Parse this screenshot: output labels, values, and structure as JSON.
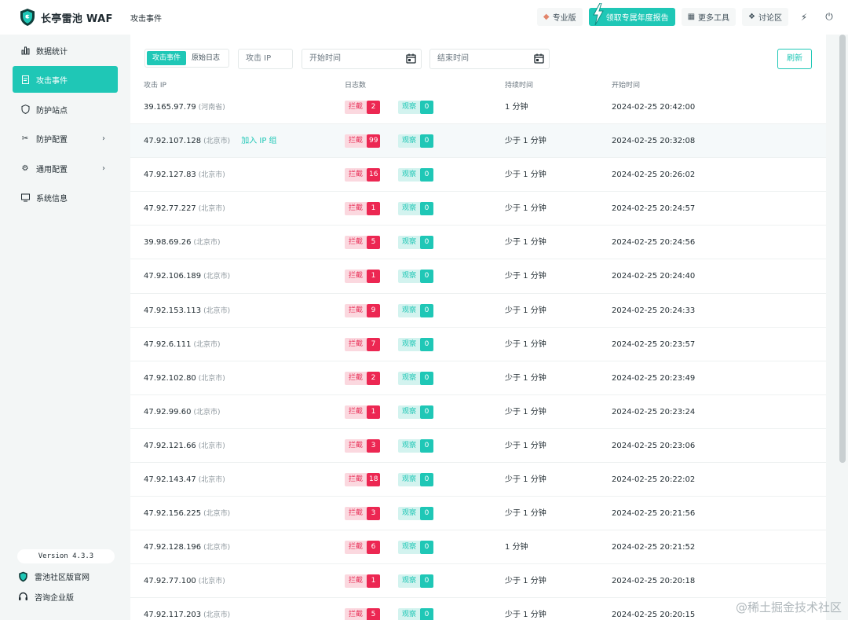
{
  "app": {
    "name": "长亭雷池 WAF",
    "page_title": "攻击事件"
  },
  "topbar": {
    "pro_label": "专业版",
    "report_label": "领取专属年度报告",
    "tools_label": "更多工具",
    "forum_label": "讨论区"
  },
  "sidebar": {
    "items": [
      {
        "label": "数据统计",
        "icon": "bar-chart-icon",
        "active": false,
        "has_children": false
      },
      {
        "label": "攻击事件",
        "icon": "document-icon",
        "active": true,
        "has_children": false
      },
      {
        "label": "防护站点",
        "icon": "shield-icon",
        "active": false,
        "has_children": false
      },
      {
        "label": "防护配置",
        "icon": "tools-icon",
        "active": false,
        "has_children": true
      },
      {
        "label": "通用配置",
        "icon": "gear-icon",
        "active": false,
        "has_children": true
      },
      {
        "label": "系统信息",
        "icon": "monitor-icon",
        "active": false,
        "has_children": false
      }
    ],
    "version": "Version 4.3.3",
    "community_link": "雷池社区版官网",
    "enterprise_link": "咨询企业版"
  },
  "filters": {
    "tab_events": "攻击事件",
    "tab_logs": "原始日志",
    "ip_placeholder": "攻击 IP",
    "start_placeholder": "开始时间",
    "end_placeholder": "结束时间",
    "refresh_label": "刷新"
  },
  "table": {
    "headers": [
      "攻击 IP",
      "日志数",
      "持续时间",
      "开始时间"
    ],
    "block_label": "拦截",
    "watch_label": "观察",
    "add_ip_label": "加入 IP 组",
    "rows": [
      {
        "ip": "39.165.97.79",
        "loc": "(河南省)",
        "block": "2",
        "watch": "0",
        "duration": "1 分钟",
        "start": "2024-02-25 20:42:00"
      },
      {
        "ip": "47.92.107.128",
        "loc": "(北京市)",
        "block": "99",
        "watch": "0",
        "duration": "少于 1 分钟",
        "start": "2024-02-25 20:32:08"
      },
      {
        "ip": "47.92.127.83",
        "loc": "(北京市)",
        "block": "16",
        "watch": "0",
        "duration": "少于 1 分钟",
        "start": "2024-02-25 20:26:02"
      },
      {
        "ip": "47.92.77.227",
        "loc": "(北京市)",
        "block": "1",
        "watch": "0",
        "duration": "少于 1 分钟",
        "start": "2024-02-25 20:24:57"
      },
      {
        "ip": "39.98.69.26",
        "loc": "(北京市)",
        "block": "5",
        "watch": "0",
        "duration": "少于 1 分钟",
        "start": "2024-02-25 20:24:56"
      },
      {
        "ip": "47.92.106.189",
        "loc": "(北京市)",
        "block": "1",
        "watch": "0",
        "duration": "少于 1 分钟",
        "start": "2024-02-25 20:24:40"
      },
      {
        "ip": "47.92.153.113",
        "loc": "(北京市)",
        "block": "9",
        "watch": "0",
        "duration": "少于 1 分钟",
        "start": "2024-02-25 20:24:33"
      },
      {
        "ip": "47.92.6.111",
        "loc": "(北京市)",
        "block": "7",
        "watch": "0",
        "duration": "少于 1 分钟",
        "start": "2024-02-25 20:23:57"
      },
      {
        "ip": "47.92.102.80",
        "loc": "(北京市)",
        "block": "2",
        "watch": "0",
        "duration": "少于 1 分钟",
        "start": "2024-02-25 20:23:49"
      },
      {
        "ip": "47.92.99.60",
        "loc": "(北京市)",
        "block": "1",
        "watch": "0",
        "duration": "少于 1 分钟",
        "start": "2024-02-25 20:23:24"
      },
      {
        "ip": "47.92.121.66",
        "loc": "(北京市)",
        "block": "3",
        "watch": "0",
        "duration": "少于 1 分钟",
        "start": "2024-02-25 20:23:06"
      },
      {
        "ip": "47.92.143.47",
        "loc": "(北京市)",
        "block": "18",
        "watch": "0",
        "duration": "少于 1 分钟",
        "start": "2024-02-25 20:22:02"
      },
      {
        "ip": "47.92.156.225",
        "loc": "(北京市)",
        "block": "3",
        "watch": "0",
        "duration": "少于 1 分钟",
        "start": "2024-02-25 20:21:56"
      },
      {
        "ip": "47.92.128.196",
        "loc": "(北京市)",
        "block": "6",
        "watch": "0",
        "duration": "1 分钟",
        "start": "2024-02-25 20:21:52"
      },
      {
        "ip": "47.92.77.100",
        "loc": "(北京市)",
        "block": "1",
        "watch": "0",
        "duration": "少于 1 分钟",
        "start": "2024-02-25 20:20:18"
      },
      {
        "ip": "47.92.117.203",
        "loc": "(北京市)",
        "block": "5",
        "watch": "0",
        "duration": "少于 1 分钟",
        "start": "2024-02-25 20:20:15"
      }
    ]
  },
  "watermark": "@稀土掘金技术社区",
  "colors": {
    "accent": "#1fc7b6",
    "block": "#ec2752",
    "block_bg": "#fbd8df",
    "watch_bg": "#d3f3ef"
  }
}
